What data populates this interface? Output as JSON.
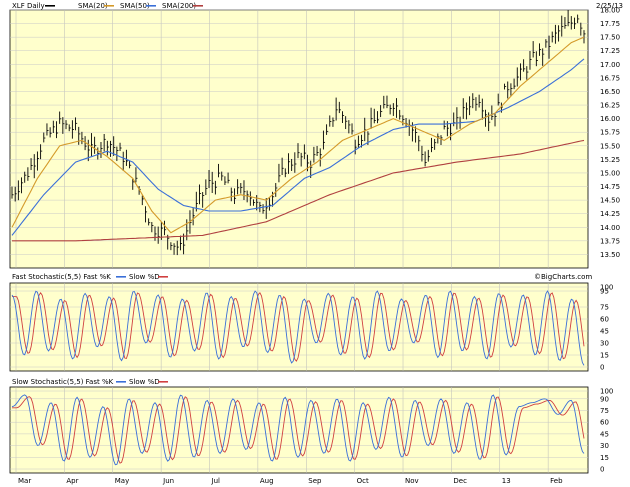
{
  "header": {
    "symbol_label": "XLF Daily",
    "date": "2/25/13",
    "legend": [
      {
        "label": "SMA(20)",
        "color": "#d49a2a"
      },
      {
        "label": "SMA(50)",
        "color": "#d49a2a"
      },
      {
        "label": "SMA(200)",
        "color": "#b04040"
      }
    ]
  },
  "chart_data": [
    {
      "type": "ohlc",
      "name": "XLF Daily",
      "x_months": [
        "Mar",
        "Apr",
        "May",
        "Jun",
        "Jul",
        "Aug",
        "Sep",
        "Oct",
        "Nov",
        "Dec",
        "13",
        "Feb"
      ],
      "ylim": [
        13.25,
        18.0
      ],
      "yticks": [
        "18.00",
        "17.75",
        "17.50",
        "17.25",
        "17.00",
        "16.75",
        "16.50",
        "16.25",
        "16.00",
        "15.75",
        "15.50",
        "15.25",
        "15.00",
        "14.75",
        "14.50",
        "14.25",
        "14.00",
        "13.75",
        "13.50"
      ],
      "close_path": [
        [
          0,
          14.6
        ],
        [
          5,
          15.0
        ],
        [
          10,
          15.6
        ],
        [
          15,
          15.9
        ],
        [
          20,
          15.8
        ],
        [
          25,
          15.4
        ],
        [
          30,
          15.6
        ],
        [
          35,
          15.3
        ],
        [
          40,
          14.7
        ],
        [
          44,
          14.0
        ],
        [
          48,
          13.9
        ],
        [
          51,
          13.7
        ],
        [
          53,
          13.6
        ],
        [
          56,
          14.1
        ],
        [
          59,
          14.5
        ],
        [
          62,
          14.8
        ],
        [
          66,
          14.9
        ],
        [
          70,
          14.6
        ],
        [
          74,
          14.7
        ],
        [
          78,
          14.3
        ],
        [
          82,
          14.6
        ],
        [
          86,
          15.1
        ],
        [
          90,
          15.3
        ],
        [
          94,
          15.2
        ],
        [
          98,
          15.5
        ],
        [
          102,
          16.2
        ],
        [
          105,
          16.0
        ],
        [
          108,
          15.6
        ],
        [
          112,
          15.8
        ],
        [
          116,
          16.1
        ],
        [
          120,
          16.3
        ],
        [
          124,
          16.0
        ],
        [
          128,
          15.6
        ],
        [
          130,
          15.2
        ],
        [
          133,
          15.5
        ],
        [
          136,
          15.8
        ],
        [
          140,
          15.9
        ],
        [
          144,
          16.3
        ],
        [
          147,
          16.4
        ],
        [
          150,
          16.0
        ],
        [
          153,
          16.2
        ],
        [
          156,
          16.6
        ],
        [
          160,
          16.8
        ],
        [
          164,
          17.1
        ],
        [
          168,
          17.3
        ],
        [
          172,
          17.6
        ],
        [
          175,
          17.7
        ],
        [
          178,
          17.9
        ],
        [
          180,
          17.6
        ]
      ],
      "sma20_path": [
        [
          0,
          14.0
        ],
        [
          8,
          14.9
        ],
        [
          15,
          15.5
        ],
        [
          22,
          15.6
        ],
        [
          30,
          15.3
        ],
        [
          38,
          14.9
        ],
        [
          44,
          14.3
        ],
        [
          50,
          13.9
        ],
        [
          56,
          14.1
        ],
        [
          64,
          14.5
        ],
        [
          72,
          14.6
        ],
        [
          80,
          14.5
        ],
        [
          88,
          14.9
        ],
        [
          96,
          15.2
        ],
        [
          104,
          15.6
        ],
        [
          112,
          15.8
        ],
        [
          120,
          16.0
        ],
        [
          128,
          15.8
        ],
        [
          136,
          15.6
        ],
        [
          144,
          15.9
        ],
        [
          152,
          16.1
        ],
        [
          160,
          16.6
        ],
        [
          168,
          17.0
        ],
        [
          176,
          17.4
        ],
        [
          180,
          17.5
        ]
      ],
      "sma50_path": [
        [
          0,
          13.85
        ],
        [
          10,
          14.6
        ],
        [
          20,
          15.2
        ],
        [
          30,
          15.4
        ],
        [
          38,
          15.2
        ],
        [
          46,
          14.7
        ],
        [
          54,
          14.4
        ],
        [
          62,
          14.3
        ],
        [
          72,
          14.3
        ],
        [
          82,
          14.4
        ],
        [
          92,
          14.9
        ],
        [
          100,
          15.1
        ],
        [
          110,
          15.5
        ],
        [
          120,
          15.8
        ],
        [
          128,
          15.9
        ],
        [
          136,
          15.9
        ],
        [
          146,
          15.95
        ],
        [
          156,
          16.2
        ],
        [
          166,
          16.5
        ],
        [
          176,
          16.9
        ],
        [
          180,
          17.1
        ]
      ],
      "sma200_path": [
        [
          0,
          13.75
        ],
        [
          20,
          13.75
        ],
        [
          40,
          13.8
        ],
        [
          60,
          13.85
        ],
        [
          80,
          14.1
        ],
        [
          100,
          14.6
        ],
        [
          120,
          15.0
        ],
        [
          140,
          15.2
        ],
        [
          160,
          15.35
        ],
        [
          180,
          15.6
        ]
      ],
      "legend": [
        "SMA(20)",
        "SMA(50)",
        "SMA(200)"
      ],
      "watermark": "©BigCharts.com"
    },
    {
      "type": "line",
      "title": "Fast Stochastic(5,5) Fast %K",
      "legend_extra": "Slow %D",
      "ylim": [
        0,
        100
      ],
      "yticks": [
        "100",
        "95",
        "75",
        "60",
        "45",
        "30",
        "15",
        "0"
      ],
      "series": [
        {
          "name": "Fast %K",
          "color": "#3a6fd8"
        },
        {
          "name": "Slow %D",
          "color": "#d04040"
        }
      ],
      "oscillation_peaks": [
        90,
        15,
        95,
        20,
        85,
        10,
        92,
        25,
        88,
        8,
        95,
        30,
        90,
        12,
        85,
        20,
        93,
        10,
        88,
        25,
        95,
        18,
        90,
        5,
        85,
        30,
        92,
        15,
        88,
        10,
        95,
        20,
        85,
        30,
        90,
        12,
        95,
        20,
        88,
        10,
        92,
        25,
        90,
        15,
        95,
        8,
        85,
        2
      ]
    },
    {
      "type": "line",
      "title": "Slow Stochastic(5,5) Fast %K",
      "legend_extra": "Slow %D",
      "ylim": [
        0,
        100
      ],
      "yticks": [
        "100",
        "90",
        "75",
        "60",
        "45",
        "30",
        "15",
        "0"
      ],
      "series": [
        {
          "name": "Fast %K",
          "color": "#3a6fd8"
        },
        {
          "name": "Slow %D",
          "color": "#d04040"
        }
      ],
      "oscillation_peaks": [
        80,
        95,
        30,
        85,
        10,
        92,
        15,
        80,
        5,
        90,
        20,
        85,
        10,
        95,
        15,
        88,
        20,
        90,
        25,
        85,
        10,
        92,
        15,
        88,
        20,
        90,
        10,
        85,
        25,
        92,
        15,
        88,
        30,
        90,
        20,
        85,
        12,
        95,
        18,
        80,
        85,
        90,
        70,
        88,
        20
      ]
    }
  ]
}
